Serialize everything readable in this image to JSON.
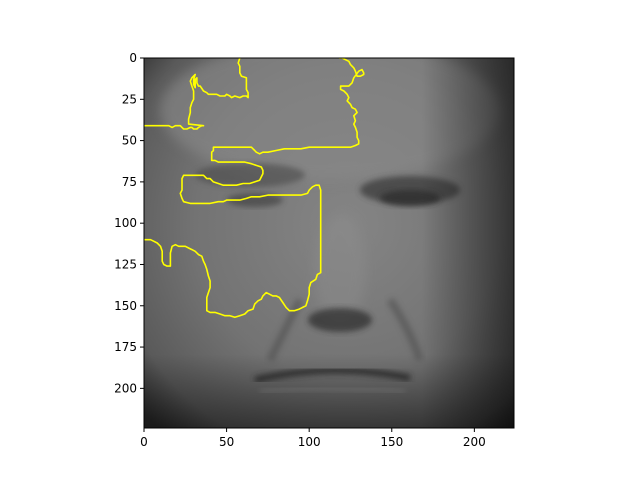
{
  "chart_data": {
    "type": "image",
    "title": "",
    "xlabel": "",
    "ylabel": "",
    "image_size": [
      224,
      224
    ],
    "xlim": [
      0,
      224
    ],
    "ylim": [
      224,
      0
    ],
    "y_inverted": true,
    "grid": false,
    "legend": "none",
    "x_ticks": [
      0,
      50,
      100,
      150,
      200
    ],
    "y_ticks": [
      0,
      25,
      50,
      75,
      100,
      125,
      150,
      175,
      200
    ],
    "x_tick_labels": [
      "0",
      "50",
      "100",
      "150",
      "200"
    ],
    "y_tick_labels": [
      "0",
      "25",
      "50",
      "75",
      "100",
      "125",
      "150",
      "175",
      "200"
    ],
    "contour_color": "#ffff00",
    "background_subject": "grayscale close-up of an elderly man's face",
    "contours": [
      [
        [
          0,
          41
        ],
        [
          9,
          41
        ],
        [
          12,
          41
        ],
        [
          15,
          41
        ],
        [
          17,
          42
        ],
        [
          19,
          41
        ],
        [
          22,
          41
        ],
        [
          23,
          42
        ],
        [
          24,
          43
        ],
        [
          26,
          43
        ],
        [
          28,
          42
        ],
        [
          29,
          42
        ],
        [
          30,
          43
        ],
        [
          32,
          43
        ],
        [
          33,
          42
        ],
        [
          35,
          41
        ],
        [
          36,
          41
        ],
        [
          27,
          40
        ],
        [
          27,
          37
        ],
        [
          28,
          33
        ],
        [
          28,
          30
        ],
        [
          29,
          27
        ],
        [
          30,
          25
        ],
        [
          30,
          22
        ],
        [
          30,
          20
        ],
        [
          29,
          17
        ],
        [
          28,
          14
        ],
        [
          29,
          12
        ],
        [
          31,
          10
        ],
        [
          30,
          13
        ],
        [
          30,
          16
        ],
        [
          31,
          18
        ],
        [
          31,
          16
        ],
        [
          31,
          13
        ],
        [
          32,
          12
        ],
        [
          32,
          15
        ],
        [
          33,
          17
        ],
        [
          34,
          17
        ],
        [
          36,
          20
        ],
        [
          38,
          21
        ],
        [
          39,
          22
        ],
        [
          42,
          22
        ],
        [
          44,
          22
        ],
        [
          46,
          23
        ],
        [
          49,
          23
        ],
        [
          50,
          22
        ],
        [
          52,
          23
        ],
        [
          53,
          24
        ],
        [
          55,
          23
        ],
        [
          58,
          24
        ],
        [
          60,
          23
        ],
        [
          62,
          23
        ],
        [
          63,
          24
        ],
        [
          63,
          21
        ],
        [
          62,
          19
        ],
        [
          62,
          16
        ],
        [
          62,
          14
        ],
        [
          62,
          12
        ],
        [
          59,
          11
        ],
        [
          58,
          9
        ],
        [
          58,
          7
        ],
        [
          58,
          5
        ],
        [
          57,
          3
        ],
        [
          58,
          0
        ]
      ],
      [
        [
          118,
          0
        ],
        [
          120,
          0
        ],
        [
          122,
          1
        ],
        [
          124,
          2
        ],
        [
          125,
          4
        ],
        [
          127,
          6
        ],
        [
          128,
          8
        ],
        [
          129,
          11
        ],
        [
          131,
          11
        ],
        [
          133,
          10
        ],
        [
          133,
          9
        ],
        [
          132,
          7
        ],
        [
          130,
          8
        ],
        [
          127,
          12
        ],
        [
          126,
          15
        ],
        [
          124,
          17
        ],
        [
          121,
          17
        ],
        [
          119,
          17
        ],
        [
          119,
          19
        ],
        [
          121,
          20
        ],
        [
          123,
          22
        ],
        [
          124,
          24
        ],
        [
          123,
          26
        ],
        [
          125,
          28
        ],
        [
          126,
          30
        ],
        [
          128,
          31
        ],
        [
          129,
          33
        ],
        [
          127,
          35
        ],
        [
          128,
          38
        ],
        [
          127,
          40
        ],
        [
          128,
          42
        ],
        [
          129,
          45
        ],
        [
          129,
          48
        ],
        [
          130,
          50
        ],
        [
          130,
          52
        ],
        [
          128,
          53
        ],
        [
          125,
          54
        ],
        [
          120,
          54
        ],
        [
          112,
          54
        ],
        [
          106,
          54
        ],
        [
          100,
          54
        ],
        [
          95,
          55
        ],
        [
          90,
          55
        ],
        [
          85,
          55
        ],
        [
          80,
          56
        ],
        [
          75,
          57
        ],
        [
          72,
          57
        ],
        [
          70,
          58
        ],
        [
          68,
          57
        ],
        [
          67,
          56
        ],
        [
          66,
          55
        ],
        [
          65,
          54
        ],
        [
          64,
          54
        ],
        [
          62,
          54
        ],
        [
          60,
          54
        ],
        [
          57,
          54
        ],
        [
          54,
          54
        ],
        [
          50,
          54
        ],
        [
          46,
          54
        ],
        [
          42,
          54
        ],
        [
          42,
          56
        ],
        [
          41,
          57
        ],
        [
          41,
          60
        ],
        [
          41,
          62
        ],
        [
          43,
          62
        ],
        [
          45,
          63
        ],
        [
          52,
          63
        ],
        [
          55,
          63
        ],
        [
          61,
          63
        ],
        [
          65,
          64
        ],
        [
          68,
          65
        ],
        [
          71,
          66
        ],
        [
          72,
          68
        ],
        [
          72,
          70
        ],
        [
          71,
          72
        ],
        [
          70,
          74
        ],
        [
          67,
          75
        ],
        [
          64,
          76
        ],
        [
          60,
          76
        ],
        [
          56,
          77
        ],
        [
          52,
          77
        ],
        [
          48,
          77
        ],
        [
          45,
          76
        ],
        [
          42,
          75
        ],
        [
          40,
          73
        ],
        [
          38,
          73
        ],
        [
          36,
          71
        ],
        [
          33,
          71
        ],
        [
          30,
          71
        ],
        [
          26,
          71
        ],
        [
          24,
          71
        ],
        [
          23,
          73
        ],
        [
          23,
          76
        ],
        [
          23,
          80
        ],
        [
          22,
          82
        ],
        [
          23,
          85
        ],
        [
          24,
          87
        ],
        [
          28,
          88
        ],
        [
          33,
          88
        ],
        [
          37,
          88
        ],
        [
          40,
          88
        ],
        [
          45,
          87
        ],
        [
          48,
          87
        ],
        [
          50,
          86
        ],
        [
          55,
          86
        ],
        [
          58,
          86
        ],
        [
          62,
          85
        ],
        [
          65,
          84
        ],
        [
          70,
          84
        ],
        [
          75,
          83
        ],
        [
          80,
          83
        ],
        [
          85,
          83
        ],
        [
          90,
          83
        ],
        [
          95,
          83
        ],
        [
          99,
          82
        ],
        [
          100,
          80
        ],
        [
          102,
          78
        ],
        [
          104,
          77
        ],
        [
          106,
          77
        ],
        [
          107,
          80
        ],
        [
          107,
          85
        ],
        [
          107,
          95
        ],
        [
          107,
          105
        ],
        [
          107,
          115
        ],
        [
          107,
          122
        ],
        [
          107,
          130
        ],
        [
          105,
          131
        ],
        [
          104,
          134
        ],
        [
          101,
          136
        ],
        [
          100,
          139
        ],
        [
          100,
          143
        ],
        [
          99,
          147
        ],
        [
          98,
          150
        ],
        [
          96,
          151
        ],
        [
          94,
          152
        ],
        [
          91,
          153
        ],
        [
          88,
          153
        ],
        [
          86,
          151
        ],
        [
          84,
          148
        ],
        [
          82,
          145
        ],
        [
          80,
          144
        ],
        [
          78,
          144
        ],
        [
          76,
          143
        ],
        [
          74,
          142
        ],
        [
          72,
          144
        ],
        [
          71,
          146
        ],
        [
          69,
          147
        ],
        [
          67,
          149
        ],
        [
          66,
          152
        ],
        [
          63,
          153
        ],
        [
          61,
          155
        ],
        [
          58,
          156
        ],
        [
          55,
          157
        ],
        [
          52,
          156
        ],
        [
          49,
          156
        ],
        [
          46,
          155
        ],
        [
          43,
          154
        ],
        [
          40,
          154
        ],
        [
          38,
          153
        ],
        [
          38,
          150
        ],
        [
          38,
          147
        ],
        [
          38,
          145
        ],
        [
          39,
          142
        ],
        [
          40,
          139
        ],
        [
          40,
          135
        ],
        [
          39,
          132
        ],
        [
          38,
          128
        ],
        [
          37,
          125
        ],
        [
          36,
          123
        ],
        [
          35,
          120
        ],
        [
          33,
          119
        ],
        [
          31,
          117
        ],
        [
          29,
          116
        ],
        [
          27,
          115
        ],
        [
          25,
          114
        ],
        [
          23,
          114
        ],
        [
          21,
          114
        ],
        [
          19,
          113
        ],
        [
          17,
          114
        ],
        [
          16,
          118
        ],
        [
          16,
          122
        ],
        [
          16,
          126
        ],
        [
          14,
          126
        ],
        [
          12,
          125
        ],
        [
          11,
          123
        ],
        [
          11,
          120
        ],
        [
          11,
          117
        ],
        [
          10,
          114
        ],
        [
          8,
          112
        ],
        [
          6,
          111
        ],
        [
          4,
          110
        ],
        [
          1,
          110
        ],
        [
          0,
          110
        ]
      ]
    ]
  }
}
